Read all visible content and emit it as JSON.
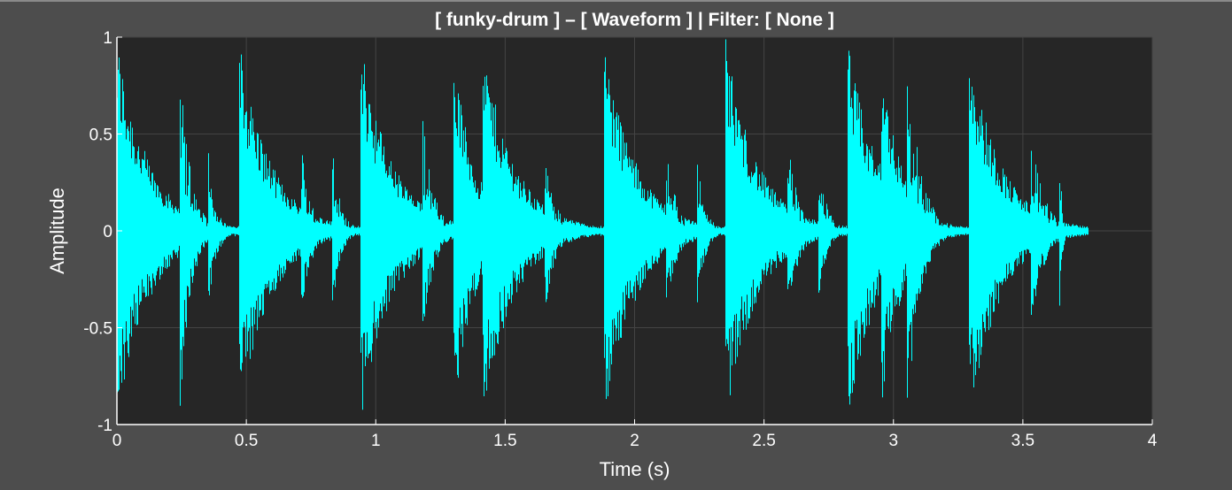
{
  "chart_data": {
    "type": "line",
    "title": "[ funky-drum ] – [ Waveform ]   | Filter: [ None ]",
    "xlabel": "Time (s)",
    "ylabel": "Amplitude",
    "xlim": [
      0,
      4
    ],
    "ylim": [
      -1,
      1
    ],
    "xticks": [
      0,
      0.5,
      1,
      1.5,
      2,
      2.5,
      3,
      3.5,
      4
    ],
    "xtick_labels": [
      "0",
      "0.5",
      "1",
      "1.5",
      "2",
      "2.5",
      "3",
      "3.5",
      "4"
    ],
    "yticks": [
      -1,
      -0.5,
      0,
      0.5,
      1
    ],
    "ytick_labels": [
      "-1",
      "-0.5",
      "0",
      "0.5",
      "1"
    ],
    "grid": true,
    "background": "#262626",
    "figure_background": "#4d4d4d",
    "line_color": "#00ffff",
    "duration": 3.75,
    "noise_floor": 0.03,
    "series": [
      {
        "hits": [
          {
            "t": 0.0,
            "amp": 1.0,
            "decay": 0.12,
            "tone": "snare"
          },
          {
            "t": 0.24,
            "amp": 1.0,
            "decay": 0.04,
            "tone": "kick"
          },
          {
            "t": 0.35,
            "amp": 0.45,
            "decay": 0.03,
            "tone": "kick"
          },
          {
            "t": 0.47,
            "amp": 1.0,
            "decay": 0.12,
            "tone": "snare"
          },
          {
            "t": 0.71,
            "amp": 0.45,
            "decay": 0.04,
            "tone": "kick"
          },
          {
            "t": 0.83,
            "amp": 0.45,
            "decay": 0.03,
            "tone": "kick"
          },
          {
            "t": 0.94,
            "amp": 1.0,
            "decay": 0.12,
            "tone": "snare"
          },
          {
            "t": 1.18,
            "amp": 0.6,
            "decay": 0.04,
            "tone": "kick"
          },
          {
            "t": 1.3,
            "amp": 0.95,
            "decay": 0.08,
            "tone": "snare"
          },
          {
            "t": 1.41,
            "amp": 1.0,
            "decay": 0.12,
            "tone": "snare"
          },
          {
            "t": 1.65,
            "amp": 0.45,
            "decay": 0.04,
            "tone": "kick"
          },
          {
            "t": 1.88,
            "amp": 1.0,
            "decay": 0.12,
            "tone": "snare"
          },
          {
            "t": 2.12,
            "amp": 0.45,
            "decay": 0.04,
            "tone": "kick"
          },
          {
            "t": 2.24,
            "amp": 0.4,
            "decay": 0.03,
            "tone": "kick"
          },
          {
            "t": 2.35,
            "amp": 1.0,
            "decay": 0.12,
            "tone": "snare"
          },
          {
            "t": 2.59,
            "amp": 0.5,
            "decay": 0.04,
            "tone": "kick"
          },
          {
            "t": 2.71,
            "amp": 0.4,
            "decay": 0.03,
            "tone": "kick"
          },
          {
            "t": 2.82,
            "amp": 1.0,
            "decay": 0.12,
            "tone": "snare"
          },
          {
            "t": 2.95,
            "amp": 0.95,
            "decay": 0.08,
            "tone": "snare"
          },
          {
            "t": 3.05,
            "amp": 1.0,
            "decay": 0.05,
            "tone": "kick"
          },
          {
            "t": 3.29,
            "amp": 1.0,
            "decay": 0.12,
            "tone": "snare"
          },
          {
            "t": 3.53,
            "amp": 0.5,
            "decay": 0.05,
            "tone": "kick"
          },
          {
            "t": 3.64,
            "amp": 0.45,
            "decay": 0.01,
            "tone": "kick"
          }
        ]
      }
    ]
  }
}
